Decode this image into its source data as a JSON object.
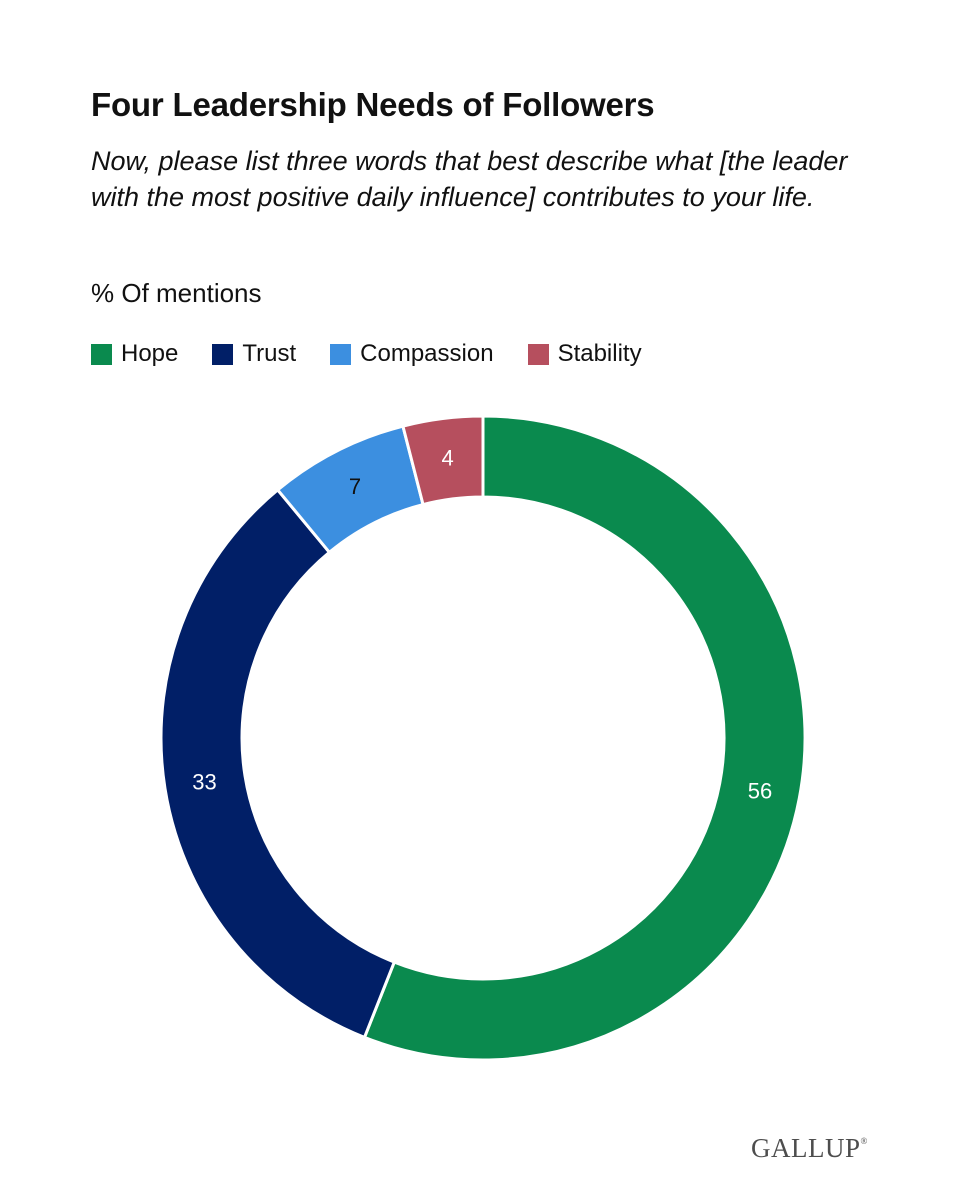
{
  "header": {
    "title": "Four Leadership Needs of Followers",
    "subtitle": "Now, please list three words that best describe what [the leader with the most positive daily influence] contributes to your life.",
    "unit": "% Of mentions"
  },
  "chart_data": {
    "type": "pie",
    "title": "Four Leadership Needs of Followers",
    "subtitle": "Now, please list three words that best describe what [the leader with the most positive daily influence] contributes to your life.",
    "ylabel": "% Of mentions",
    "donut": true,
    "legend_position": "top-left",
    "slices": [
      {
        "label": "Hope",
        "value": 56,
        "color": "#0a8a4e",
        "label_color": "#ffffff"
      },
      {
        "label": "Trust",
        "value": 33,
        "color": "#011f67",
        "label_color": "#ffffff"
      },
      {
        "label": "Compassion",
        "value": 7,
        "color": "#3c8fe0",
        "label_color": "#111111"
      },
      {
        "label": "Stability",
        "value": 4,
        "color": "#b64f5e",
        "label_color": "#ffffff"
      }
    ]
  },
  "footer": {
    "brand": "GALLUP",
    "brand_mark": "®"
  }
}
